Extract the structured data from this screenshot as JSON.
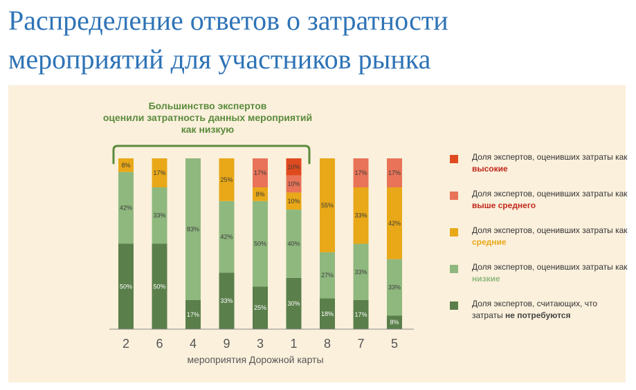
{
  "title": {
    "line1": "Распределение ответов о затратности",
    "line2": "мероприятий для участников рынка"
  },
  "annotation": {
    "line1": "Большинство экспертов",
    "line2": "оценили затратность данных мероприятий",
    "line3": "как низкую"
  },
  "legend": [
    {
      "prefix": "Доля экспертов, оценивших затраты как ",
      "emph": "высокие",
      "color": "#e04a1f",
      "emph_color": "#c0281b"
    },
    {
      "prefix": "Доля экспертов, оценивших затраты как ",
      "emph": "выше среднего",
      "color": "#e87358",
      "emph_color": "#c0281b"
    },
    {
      "prefix": "Доля экспертов, оценивших затраты как ",
      "emph": "средние",
      "color": "#e8a818",
      "emph_color": "#e8a818"
    },
    {
      "prefix": "Доля экспертов, оценивших затраты как ",
      "emph": "низкие",
      "color": "#8fb87e",
      "emph_color": "#8fb87e"
    },
    {
      "prefix": "Доля экспертов, считающих, что затраты ",
      "emph": "не потребуются",
      "color": "#5a7f4a",
      "emph_color": "#444444"
    }
  ],
  "chart_data": {
    "type": "bar",
    "stacked": true,
    "xlabel": "мероприятия Дорожной карты",
    "categories": [
      "2",
      "6",
      "4",
      "9",
      "3",
      "1",
      "8",
      "7",
      "5"
    ],
    "series": [
      {
        "name": "не потребуются",
        "color": "#5a7f4a",
        "values": [
          50,
          50,
          17,
          33,
          25,
          30,
          18,
          17,
          8
        ]
      },
      {
        "name": "низкие",
        "color": "#8fb87e",
        "values": [
          42,
          33,
          83,
          42,
          50,
          40,
          27,
          33,
          33
        ]
      },
      {
        "name": "средние",
        "color": "#e8a818",
        "values": [
          8,
          17,
          0,
          25,
          8,
          10,
          55,
          33,
          42
        ]
      },
      {
        "name": "выше среднего",
        "color": "#e87358",
        "values": [
          0,
          0,
          0,
          0,
          17,
          10,
          0,
          17,
          17
        ]
      },
      {
        "name": "высокие",
        "color": "#e04a1f",
        "values": [
          0,
          0,
          0,
          0,
          0,
          10,
          0,
          0,
          0
        ]
      }
    ],
    "labels": [
      [
        "50%",
        "42%",
        "8%",
        "",
        ""
      ],
      [
        "50%",
        "33%",
        "17%",
        "",
        ""
      ],
      [
        "17%",
        "83%",
        "",
        "",
        ""
      ],
      [
        "33%",
        "42%",
        "25%",
        "",
        ""
      ],
      [
        "25%",
        "50%",
        "8%",
        "17%",
        ""
      ],
      [
        "30%",
        "40%",
        "10%",
        "10%",
        "10%"
      ],
      [
        "18%",
        "27%",
        "55%",
        "",
        ""
      ],
      [
        "17%",
        "33%",
        "33%",
        "17%",
        ""
      ],
      [
        "8%",
        "33%",
        "42%",
        "17%",
        ""
      ]
    ],
    "ylim": [
      0,
      100
    ],
    "bracket_over": [
      "2",
      "6",
      "4",
      "9",
      "3",
      "1"
    ]
  }
}
